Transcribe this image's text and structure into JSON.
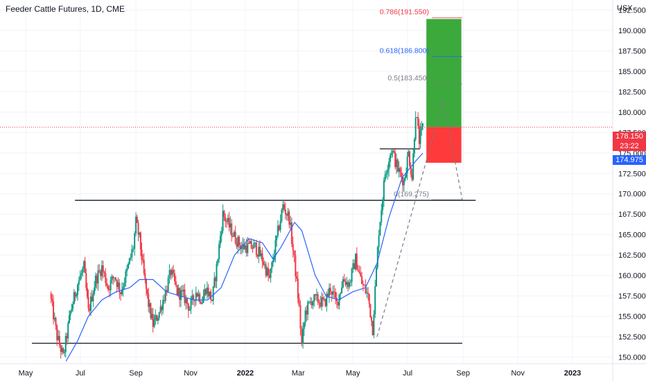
{
  "header": {
    "title": "Feeder Cattle Futures, 1D, CME",
    "currency": "USX"
  },
  "price_tags": {
    "last_price": "178.150",
    "countdown": "23:22",
    "ma_value": "174.975",
    "last_color": "#f23645",
    "ma_color": "#2962ff"
  },
  "chart_data": {
    "type": "candlestick",
    "title": "Feeder Cattle Futures, 1D, CME",
    "ylabel": "USX",
    "ylim": [
      149.2,
      193.3
    ],
    "yticks": [
      "150.000",
      "152.500",
      "155.000",
      "157.500",
      "160.000",
      "162.500",
      "165.000",
      "167.500",
      "170.000",
      "172.500",
      "175.000",
      "177.500",
      "180.000",
      "182.500",
      "185.000",
      "187.500",
      "190.000",
      "192.500"
    ],
    "x_labels": [
      {
        "label": "May",
        "date": "2021-05-01"
      },
      {
        "label": "Jul",
        "date": "2021-07-01"
      },
      {
        "label": "Sep",
        "date": "2021-09-01"
      },
      {
        "label": "Nov",
        "date": "2021-11-01"
      },
      {
        "label": "2022",
        "date": "2022-01-01"
      },
      {
        "label": "Mar",
        "date": "2022-03-01"
      },
      {
        "label": "May",
        "date": "2022-05-01"
      },
      {
        "label": "Jul",
        "date": "2022-07-01"
      },
      {
        "label": "Sep",
        "date": "2022-09-01"
      },
      {
        "label": "Nov",
        "date": "2022-11-01"
      },
      {
        "label": "2023",
        "date": "2023-01-01"
      }
    ],
    "last_price": 178.15,
    "moving_average_last": 174.975,
    "price_path": [
      [
        "2021-05-28",
        157.8
      ],
      [
        "2021-06-05",
        152.5
      ],
      [
        "2021-06-12",
        150.0
      ],
      [
        "2021-06-20",
        155.5
      ],
      [
        "2021-06-28",
        159.0
      ],
      [
        "2021-07-05",
        161.0
      ],
      [
        "2021-07-10",
        155.5
      ],
      [
        "2021-07-18",
        159.5
      ],
      [
        "2021-07-25",
        161.0
      ],
      [
        "2021-08-01",
        158.5
      ],
      [
        "2021-08-08",
        160.0
      ],
      [
        "2021-08-15",
        158.0
      ],
      [
        "2021-08-22",
        160.5
      ],
      [
        "2021-08-29",
        163.5
      ],
      [
        "2021-09-01",
        166.5
      ],
      [
        "2021-09-05",
        164.5
      ],
      [
        "2021-09-10",
        160.0
      ],
      [
        "2021-09-15",
        156.5
      ],
      [
        "2021-09-20",
        154.0
      ],
      [
        "2021-09-27",
        155.5
      ],
      [
        "2021-10-04",
        158.0
      ],
      [
        "2021-10-10",
        160.5
      ],
      [
        "2021-10-17",
        158.0
      ],
      [
        "2021-10-24",
        157.5
      ],
      [
        "2021-10-31",
        156.0
      ],
      [
        "2021-11-07",
        158.0
      ],
      [
        "2021-11-14",
        157.0
      ],
      [
        "2021-11-18",
        158.5
      ],
      [
        "2021-11-25",
        157.0
      ],
      [
        "2021-11-30",
        161.0
      ],
      [
        "2021-12-07",
        167.5
      ],
      [
        "2021-12-14",
        166.0
      ],
      [
        "2021-12-21",
        164.5
      ],
      [
        "2021-12-28",
        163.5
      ],
      [
        "2022-01-05",
        163.5
      ],
      [
        "2022-01-12",
        163.5
      ],
      [
        "2022-01-20",
        162.0
      ],
      [
        "2022-01-28",
        159.5
      ],
      [
        "2022-02-05",
        164.5
      ],
      [
        "2022-02-12",
        168.5
      ],
      [
        "2022-02-19",
        167.0
      ],
      [
        "2022-02-26",
        160.5
      ],
      [
        "2022-03-02",
        156.0
      ],
      [
        "2022-03-05",
        151.5
      ],
      [
        "2022-03-09",
        155.5
      ],
      [
        "2022-03-16",
        157.0
      ],
      [
        "2022-03-23",
        157.0
      ],
      [
        "2022-03-30",
        156.5
      ],
      [
        "2022-04-06",
        158.5
      ],
      [
        "2022-04-13",
        156.5
      ],
      [
        "2022-04-20",
        159.5
      ],
      [
        "2022-04-27",
        159.0
      ],
      [
        "2022-05-04",
        162.0
      ],
      [
        "2022-05-11",
        159.0
      ],
      [
        "2022-05-18",
        157.5
      ],
      [
        "2022-05-23",
        153.5
      ],
      [
        "2022-05-30",
        165.5
      ],
      [
        "2022-06-06",
        172.5
      ],
      [
        "2022-06-13",
        175.5
      ],
      [
        "2022-06-20",
        173.0
      ],
      [
        "2022-06-27",
        171.5
      ],
      [
        "2022-07-02",
        175.0
      ],
      [
        "2022-07-06",
        172.0
      ],
      [
        "2022-07-10",
        180.0
      ],
      [
        "2022-07-14",
        176.5
      ],
      [
        "2022-07-18",
        178.15
      ]
    ],
    "moving_average": [
      [
        "2021-06-15",
        149.5
      ],
      [
        "2021-06-28",
        152.0
      ],
      [
        "2021-07-10",
        155.0
      ],
      [
        "2021-07-25",
        157.0
      ],
      [
        "2021-08-10",
        158.0
      ],
      [
        "2021-08-25",
        158.5
      ],
      [
        "2021-09-05",
        159.5
      ],
      [
        "2021-09-20",
        159.5
      ],
      [
        "2021-10-05",
        158.0
      ],
      [
        "2021-10-20",
        157.5
      ],
      [
        "2021-11-05",
        157.0
      ],
      [
        "2021-11-20",
        157.0
      ],
      [
        "2021-12-05",
        158.5
      ],
      [
        "2021-12-20",
        162.5
      ],
      [
        "2022-01-05",
        164.5
      ],
      [
        "2022-01-20",
        164.0
      ],
      [
        "2022-02-01",
        162.0
      ],
      [
        "2022-02-10",
        163.5
      ],
      [
        "2022-02-25",
        166.5
      ],
      [
        "2022-03-05",
        165.5
      ],
      [
        "2022-03-20",
        160.0
      ],
      [
        "2022-04-01",
        157.5
      ],
      [
        "2022-04-15",
        157.0
      ],
      [
        "2022-05-01",
        158.0
      ],
      [
        "2022-05-15",
        158.5
      ],
      [
        "2022-05-28",
        161.5
      ],
      [
        "2022-06-10",
        167.0
      ],
      [
        "2022-06-25",
        172.0
      ],
      [
        "2022-07-10",
        174.0
      ],
      [
        "2022-07-18",
        174.975
      ]
    ],
    "horizontal_levels": [
      {
        "price": 151.7,
        "from": "2021-05-08",
        "to": "2022-08-31"
      },
      {
        "price": 169.2,
        "from": "2021-06-25",
        "to": "2022-09-15"
      },
      {
        "price": 175.5,
        "from": "2022-05-31",
        "to": "2022-07-15"
      }
    ],
    "fibonacci": {
      "start": {
        "date": "2022-05-28",
        "price": 152.5
      },
      "end": {
        "date": "2022-08-10",
        "price": 181.5
      },
      "from": "2022-07-28",
      "to": "2022-08-31",
      "levels": [
        {
          "label": "0(169.275)",
          "price": 169.275,
          "color": "#787b86"
        },
        {
          "label": "0.5(183.450)",
          "price": 183.45,
          "color": "#787b86"
        },
        {
          "label": "0.618(186.800)",
          "price": 186.8,
          "color": "#2962ff"
        },
        {
          "label": "0.786(191.550)",
          "price": 191.55,
          "color": "#f23645"
        }
      ]
    },
    "position": {
      "from": "2022-07-22",
      "to": "2022-08-30",
      "entry": 178.15,
      "target": 191.4,
      "stop": 173.8,
      "profit_color": "#3ca93c",
      "loss_color": "#ff3a3a"
    },
    "grid": true,
    "legend": "none"
  }
}
